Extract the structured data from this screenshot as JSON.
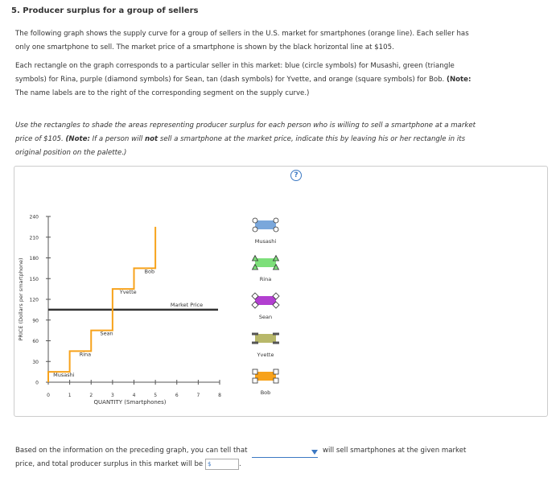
{
  "title": "5. Producer surplus for a group of sellers",
  "intro": {
    "p1_line1": "The following graph shows the supply curve for a group of sellers in the U.S. market for smartphones (orange line). Each seller has",
    "p1_line2": "only one smartphone to sell. The market price of a smartphone is shown by the black horizontal line at $105.",
    "p2_line1": "Each rectangle on the graph corresponds to a particular seller in this market: blue (circle symbols) for Musashi, green (triangle",
    "p2_line2": "symbols) for Rina, purple (diamond symbols) for Sean, tan (dash symbols) for Yvette, and orange (square symbols) for Bob.",
    "p2_note_label": "(Note:",
    "p2_line3": "The name labels are to the right of the corresponding segment on the supply curve.)",
    "p3_line1_a": "Use the rectangles to shade the areas representing producer surplus for each person who is willing to sell a smartphone at a market",
    "p3_line2_a": "price of $105.",
    "p3_note_label": "(Note:",
    "p3_line2_b": "If a person will",
    "p3_not": "not",
    "p3_line2_c": "sell a smartphone at the market price, indicate this by leaving his or her rectangle in its",
    "p3_line3": "original position on the palette.)"
  },
  "help_icon": "?",
  "chart_data": {
    "type": "line",
    "xlabel": "QUANTITY (Smartphones)",
    "ylabel": "PRICE (Dollars per smartphone)",
    "xlim": [
      0,
      8
    ],
    "ylim": [
      0,
      240
    ],
    "x_ticks": [
      "0",
      "1",
      "2",
      "3",
      "4",
      "5",
      "6",
      "7",
      "8"
    ],
    "y_ticks": [
      "0",
      "30",
      "60",
      "90",
      "120",
      "150",
      "180",
      "210",
      "240"
    ],
    "supply_steps": [
      {
        "name": "Musashi",
        "price": 15,
        "q_start": 0,
        "q_end": 1
      },
      {
        "name": "Rina",
        "price": 45,
        "q_start": 1,
        "q_end": 2
      },
      {
        "name": "Sean",
        "price": 75,
        "q_start": 2,
        "q_end": 3
      },
      {
        "name": "Yvette",
        "price": 135,
        "q_start": 3,
        "q_end": 4
      },
      {
        "name": "Bob",
        "price": 165,
        "q_start": 4,
        "q_end": 5
      }
    ],
    "supply_top": 225,
    "market_price": 105,
    "market_price_label": "Market Price",
    "colors": {
      "supply": "#f7a21b",
      "market": "#333333"
    }
  },
  "palette": [
    {
      "name": "Musashi",
      "color": "#7aa7db",
      "symbol": "circle"
    },
    {
      "name": "Rina",
      "color": "#7ddf7a",
      "symbol": "triangle"
    },
    {
      "name": "Sean",
      "color": "#b23fd0",
      "symbol": "diamond"
    },
    {
      "name": "Yvette",
      "color": "#b8b86a",
      "symbol": "dash"
    },
    {
      "name": "Bob",
      "color": "#f7a21b",
      "symbol": "square"
    }
  ],
  "footer": {
    "text_a": "Based on the information on the preceding graph, you can tell that",
    "dropdown_value": "",
    "text_b": "will sell smartphones at the given market",
    "text_c": "price, and total producer surplus in this market will be",
    "dollar_prefix": "$",
    "text_d": "."
  }
}
